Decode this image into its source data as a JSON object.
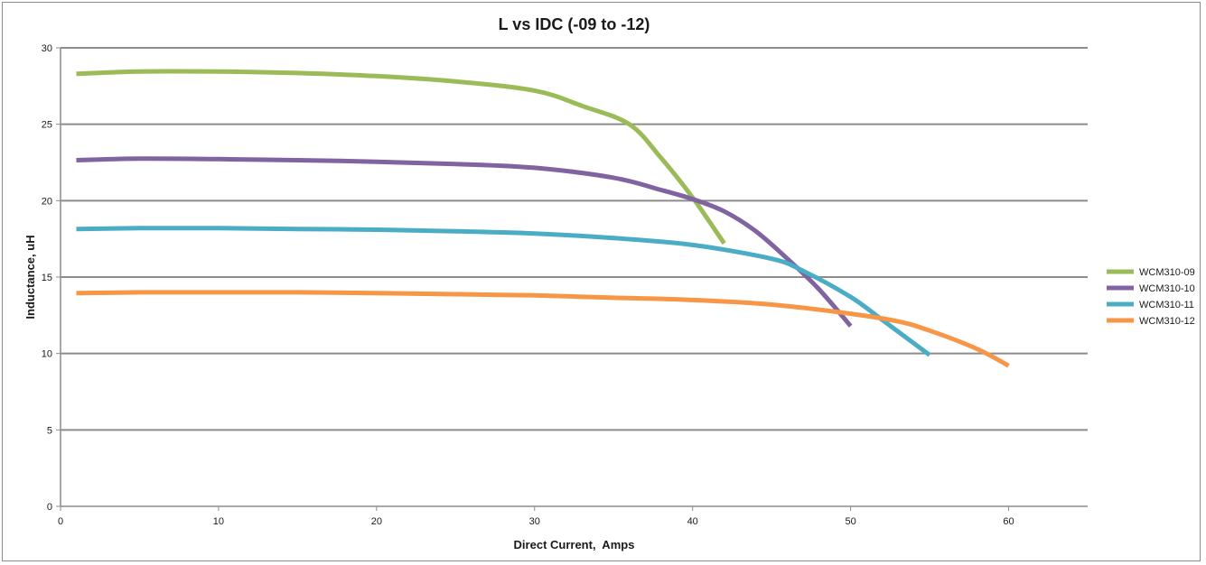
{
  "chart_data": {
    "type": "line",
    "title": "L vs IDC (-09 to -12)",
    "xlabel": "Direct Current,  Amps",
    "ylabel": "Inductance, uH",
    "xlim": [
      0,
      65
    ],
    "ylim": [
      0,
      30
    ],
    "x_ticks": [
      0,
      10,
      20,
      30,
      40,
      50,
      60
    ],
    "y_ticks": [
      0,
      5,
      10,
      15,
      20,
      25,
      30
    ],
    "grid": "horizontal",
    "legend_position": "right",
    "series": [
      {
        "name": "WCM310-09",
        "color": "#9bbb59",
        "points": [
          [
            1,
            28.3
          ],
          [
            5,
            28.45
          ],
          [
            10,
            28.45
          ],
          [
            15,
            28.35
          ],
          [
            20,
            28.15
          ],
          [
            25,
            27.8
          ],
          [
            30,
            27.2
          ],
          [
            33,
            26.2
          ],
          [
            36,
            25.0
          ],
          [
            38,
            22.8
          ],
          [
            40,
            20.2
          ],
          [
            42,
            17.2
          ]
        ]
      },
      {
        "name": "WCM310-10",
        "color": "#8064a2",
        "points": [
          [
            1,
            22.65
          ],
          [
            5,
            22.75
          ],
          [
            10,
            22.72
          ],
          [
            15,
            22.65
          ],
          [
            20,
            22.55
          ],
          [
            25,
            22.4
          ],
          [
            30,
            22.15
          ],
          [
            35,
            21.5
          ],
          [
            38,
            20.7
          ],
          [
            40,
            20.1
          ],
          [
            42,
            19.3
          ],
          [
            44,
            18.0
          ],
          [
            46,
            16.2
          ],
          [
            48,
            14.2
          ],
          [
            50,
            11.8
          ]
        ]
      },
      {
        "name": "WCM310-11",
        "color": "#4bacc6",
        "points": [
          [
            1,
            18.15
          ],
          [
            5,
            18.2
          ],
          [
            10,
            18.2
          ],
          [
            15,
            18.15
          ],
          [
            20,
            18.1
          ],
          [
            25,
            18.0
          ],
          [
            30,
            17.85
          ],
          [
            35,
            17.55
          ],
          [
            40,
            17.1
          ],
          [
            45,
            16.2
          ],
          [
            47,
            15.4
          ],
          [
            50,
            13.7
          ],
          [
            52,
            12.2
          ],
          [
            55,
            9.9
          ]
        ]
      },
      {
        "name": "WCM310-12",
        "color": "#f79646",
        "points": [
          [
            1,
            13.95
          ],
          [
            5,
            14.0
          ],
          [
            10,
            14.0
          ],
          [
            15,
            14.0
          ],
          [
            20,
            13.95
          ],
          [
            25,
            13.88
          ],
          [
            30,
            13.8
          ],
          [
            35,
            13.65
          ],
          [
            40,
            13.5
          ],
          [
            45,
            13.2
          ],
          [
            50,
            12.6
          ],
          [
            53,
            12.1
          ],
          [
            55,
            11.5
          ],
          [
            58,
            10.3
          ],
          [
            60,
            9.2
          ]
        ]
      }
    ]
  }
}
